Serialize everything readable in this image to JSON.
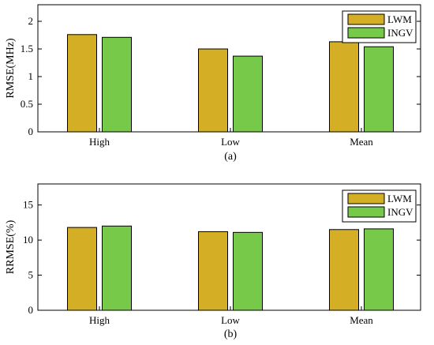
{
  "colors": {
    "LWM": "#D4AF25",
    "INGV": "#77C94A",
    "axis": "#000000",
    "background": "#ffffff"
  },
  "chart_data": [
    {
      "type": "bar",
      "panel_label": "(a)",
      "ylabel": "RMSE(MHz)",
      "categories": [
        "High",
        "Low",
        "Mean"
      ],
      "series": [
        {
          "name": "LWM",
          "values": [
            1.76,
            1.5,
            1.63
          ]
        },
        {
          "name": "INGV",
          "values": [
            1.71,
            1.37,
            1.54
          ]
        }
      ],
      "ylim": [
        0,
        2.3
      ],
      "yticks": [
        0,
        0.5,
        1,
        1.5,
        2
      ],
      "ytick_labels": [
        "0",
        "0.5",
        "1",
        "1.5",
        "2"
      ],
      "legend_position": "top-right",
      "grid": false
    },
    {
      "type": "bar",
      "panel_label": "(b)",
      "ylabel": "RRMSE(%)",
      "categories": [
        "High",
        "Low",
        "Mean"
      ],
      "series": [
        {
          "name": "LWM",
          "values": [
            11.8,
            11.2,
            11.5
          ]
        },
        {
          "name": "INGV",
          "values": [
            12.0,
            11.1,
            11.6
          ]
        }
      ],
      "ylim": [
        0,
        18
      ],
      "yticks": [
        0,
        5,
        10,
        15
      ],
      "ytick_labels": [
        "0",
        "5",
        "10",
        "15"
      ],
      "legend_position": "top-right",
      "grid": false
    }
  ]
}
